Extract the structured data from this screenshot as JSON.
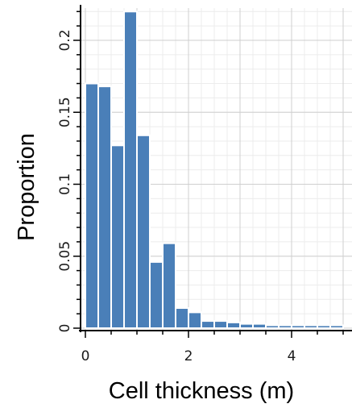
{
  "chart_data": {
    "type": "bar",
    "title": "",
    "xlabel": "Cell thickness (m)",
    "ylabel": "Proportion",
    "bin_width": 0.25,
    "bin_starts": [
      0,
      0.25,
      0.5,
      0.75,
      1.0,
      1.25,
      1.5,
      1.75,
      2.0,
      2.25,
      2.5,
      2.75,
      3.0,
      3.25,
      3.5,
      3.75,
      4.0,
      4.25,
      4.5,
      4.75
    ],
    "values": [
      0.17,
      0.168,
      0.127,
      0.22,
      0.134,
      0.046,
      0.059,
      0.014,
      0.011,
      0.005,
      0.005,
      0.004,
      0.003,
      0.003,
      0.002,
      0.002,
      0.002,
      0.002,
      0.002,
      0.002
    ],
    "xlim": [
      -0.05,
      5.2
    ],
    "ylim": [
      0,
      0.22
    ],
    "xticks": [
      0,
      2,
      4
    ],
    "xtick_labels": [
      "0",
      "2",
      "4"
    ],
    "yticks": [
      0,
      0.05,
      0.1,
      0.15,
      0.2
    ],
    "ytick_labels": [
      "0",
      "0.05",
      "0.1",
      "0.15",
      "0.2"
    ],
    "grid": true,
    "legend": "none",
    "colors": {
      "bar": "#4a7fb8",
      "bar_edge": "#ffffff",
      "grid_major": "#cfcfcf",
      "grid_minor": "#ececec",
      "axis": "#000000"
    }
  }
}
